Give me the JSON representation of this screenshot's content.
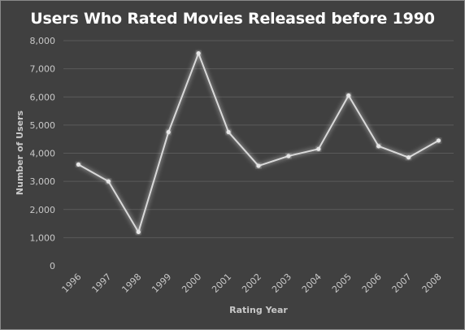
{
  "chart_data": {
    "type": "line",
    "title": "Users Who Rated Movies Released before 1990",
    "xlabel": "Rating Year",
    "ylabel": "Number of Users",
    "categories": [
      "1996",
      "1997",
      "1998",
      "1999",
      "2000",
      "2001",
      "2002",
      "2003",
      "2004",
      "2005",
      "2006",
      "2007",
      "2008"
    ],
    "series": [
      {
        "values": [
          3600,
          3000,
          1200,
          4750,
          7550,
          4750,
          3550,
          3900,
          4150,
          6050,
          4250,
          3850,
          4450
        ]
      }
    ],
    "ylim": [
      0,
      8000
    ],
    "yticks": [
      "0",
      "1,000",
      "2,000",
      "3,000",
      "4,000",
      "5,000",
      "6,000",
      "7,000",
      "8,000"
    ],
    "grid": true,
    "legend": "none",
    "colors": {
      "background": "#404040",
      "line": "#d9d9d9",
      "gridline": "#5a5a5a",
      "text": "#c8c8c8"
    }
  }
}
